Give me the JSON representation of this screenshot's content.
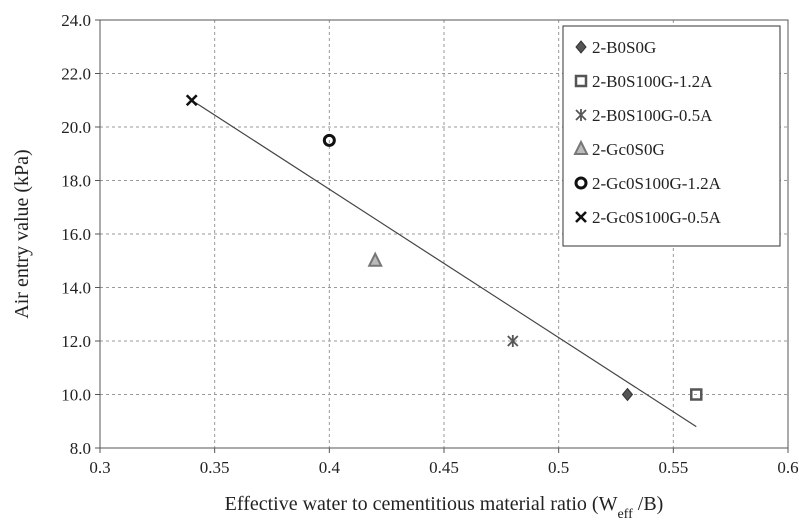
{
  "chart_data": {
    "type": "scatter",
    "title": "",
    "xlabel": "Effective water to cementitious material ratio (W",
    "xlabel_sub": "eff",
    "xlabel_tail": " /B)",
    "ylabel": "Air entry value (kPa)",
    "xlim": [
      0.3,
      0.6
    ],
    "ylim": [
      8.0,
      24.0
    ],
    "x_ticks": [
      0.3,
      0.35,
      0.4,
      0.45,
      0.5,
      0.55,
      0.6
    ],
    "x_tick_labels": [
      "0.3",
      "0.35",
      "0.4",
      "0.45",
      "0.5",
      "0.55",
      "0.6"
    ],
    "y_ticks": [
      8.0,
      10.0,
      12.0,
      14.0,
      16.0,
      18.0,
      20.0,
      22.0,
      24.0
    ],
    "y_tick_labels": [
      "8.0",
      "10.0",
      "12.0",
      "14.0",
      "16.0",
      "18.0",
      "20.0",
      "22.0",
      "24.0"
    ],
    "grid": true,
    "legend_position": "top-right",
    "series": [
      {
        "name": "2-B0S0G",
        "marker": "diamond",
        "color": "#555555",
        "x": [
          0.53
        ],
        "y": [
          10.0
        ]
      },
      {
        "name": "2-B0S100G-1.2A",
        "marker": "square-open",
        "color": "#555555",
        "x": [
          0.56
        ],
        "y": [
          10.0
        ]
      },
      {
        "name": "2-B0S100G-0.5A",
        "marker": "star",
        "color": "#555555",
        "x": [
          0.48
        ],
        "y": [
          12.0
        ]
      },
      {
        "name": "2-Gc0S0G",
        "marker": "triangle",
        "color": "#777777",
        "x": [
          0.42
        ],
        "y": [
          15.0
        ]
      },
      {
        "name": "2-Gc0S100G-1.2A",
        "marker": "circle-open",
        "color": "#111111",
        "x": [
          0.4
        ],
        "y": [
          19.5
        ]
      },
      {
        "name": "2-Gc0S100G-0.5A",
        "marker": "x",
        "color": "#111111",
        "x": [
          0.34
        ],
        "y": [
          21.0
        ]
      }
    ],
    "trendline": {
      "type": "linear",
      "color": "#444444",
      "x": [
        0.34,
        0.56
      ],
      "y": [
        21.0,
        8.8
      ]
    }
  }
}
